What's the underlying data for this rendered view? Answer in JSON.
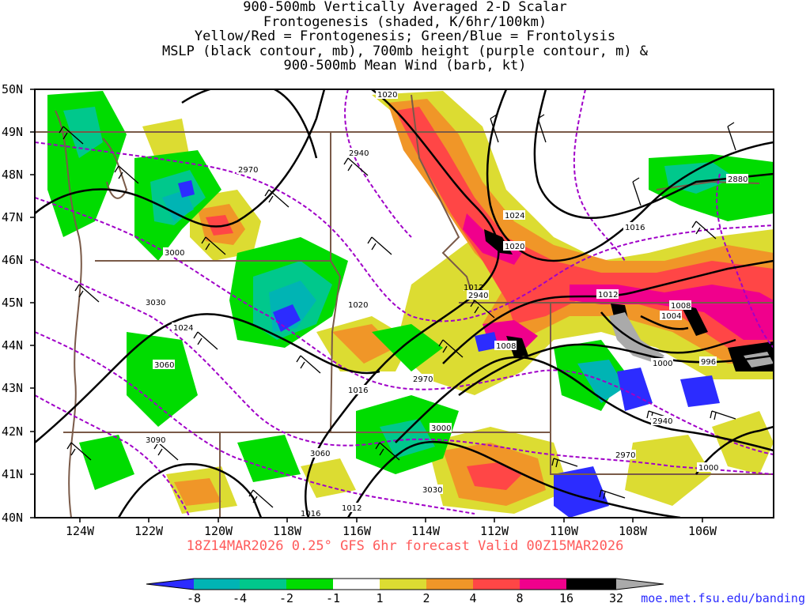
{
  "title_lines": [
    "900-500mb Vertically Averaged 2-D Scalar",
    "Frontogenesis (shaded, K/6hr/100km)",
    "Yellow/Red = Frontogenesis;  Green/Blue = Frontolysis",
    "MSLP (black contour, mb), 700mb height (purple contour, m) &",
    "900-500mb Mean Wind (barb, kt)"
  ],
  "lat_labels": [
    "50N",
    "49N",
    "48N",
    "47N",
    "46N",
    "45N",
    "44N",
    "43N",
    "42N",
    "41N",
    "40N"
  ],
  "lon_labels": [
    "124W",
    "122W",
    "120W",
    "118W",
    "116W",
    "114W",
    "112W",
    "110W",
    "108W",
    "106W"
  ],
  "mslp_labels": [
    "1020",
    "1024",
    "1020",
    "1024",
    "1020",
    "1016",
    "1016",
    "1016",
    "1012",
    "1012",
    "1008",
    "1008",
    "1004",
    "1000",
    "996",
    "1000",
    "1012"
  ],
  "height_labels": [
    "2970",
    "2940",
    "2880",
    "3000",
    "3030",
    "3060",
    "2940",
    "2970",
    "3000",
    "3060",
    "3030",
    "3090",
    "2940",
    "2970"
  ],
  "valid_text": "18Z14MAR2026 0.25° GFS 6hr forecast Valid 00Z15MAR2026",
  "colorbar": {
    "labels": [
      "-8",
      "-4",
      "-2",
      "-1",
      "1",
      "2",
      "4",
      "8",
      "16",
      "32"
    ],
    "colors": [
      "#2c2cff",
      "#00b4b4",
      "#00c88c",
      "#00dc00",
      "#ffffff",
      "#dcdc32",
      "#f09628",
      "#ff4646",
      "#f0008c",
      "#000000",
      "#aaaaaa"
    ]
  },
  "credit": "moe.met.fsu.edu/banding",
  "colors": {
    "mslp": "#000000",
    "height": "#a000c8",
    "borders": "#7a5a48"
  }
}
